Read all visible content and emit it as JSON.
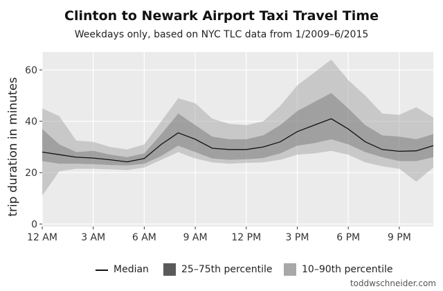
{
  "chart_data": {
    "type": "area",
    "title": "Clinton to Newark Airport Taxi Travel Time",
    "subtitle": "Weekdays only, based on NYC TLC data from 1/2009–6/2015",
    "ylabel": "trip duration in minutes",
    "xlabel": "",
    "ylim": [
      -1,
      67
    ],
    "xlim": [
      0,
      23
    ],
    "x_ticks": [
      {
        "value": 0,
        "label": "12 AM"
      },
      {
        "value": 3,
        "label": "3 AM"
      },
      {
        "value": 6,
        "label": "6 AM"
      },
      {
        "value": 9,
        "label": "9 AM"
      },
      {
        "value": 12,
        "label": "12 PM"
      },
      {
        "value": 15,
        "label": "3 PM"
      },
      {
        "value": 18,
        "label": "6 PM"
      },
      {
        "value": 21,
        "label": "9 PM"
      }
    ],
    "y_ticks": [
      0,
      20,
      40,
      60
    ],
    "grid": true,
    "x": [
      0,
      1,
      2,
      3,
      4,
      5,
      6,
      7,
      8,
      9,
      10,
      11,
      12,
      13,
      14,
      15,
      16,
      17,
      18,
      19,
      20,
      21,
      22,
      23
    ],
    "median": [
      28,
      27,
      26,
      25.7,
      25,
      24.2,
      25.5,
      31,
      35.5,
      33,
      29.5,
      29,
      29,
      30,
      32,
      36,
      38.5,
      41,
      37,
      32,
      29,
      28.3,
      28.5,
      30.5
    ],
    "p25": [
      24.5,
      23.5,
      23.5,
      23.3,
      23,
      22.8,
      23.5,
      26.5,
      30.5,
      28,
      25.5,
      25,
      25.2,
      25.7,
      27.5,
      30.5,
      31.5,
      33,
      31,
      28,
      26,
      24.5,
      24.5,
      26
    ],
    "p75": [
      37,
      31,
      28,
      28.5,
      27,
      26,
      27.5,
      35,
      43,
      38.5,
      34,
      33,
      33,
      34.5,
      38.5,
      44,
      47.5,
      51,
      45,
      38.5,
      34.5,
      34,
      33,
      35
    ],
    "p10": [
      11,
      20.5,
      21.5,
      21.5,
      21.3,
      21,
      22,
      25,
      28,
      25.5,
      24,
      23.5,
      23.8,
      24,
      25,
      27,
      27.5,
      28.5,
      27,
      24,
      22.5,
      21.5,
      16.5,
      22
    ],
    "p90": [
      45,
      42,
      32.5,
      32,
      30,
      29,
      31,
      40,
      49,
      47,
      41,
      39,
      38.5,
      40,
      46,
      54,
      59,
      64,
      56,
      50,
      43,
      42.5,
      45.5,
      41.5
    ],
    "series": [
      {
        "name": "Median",
        "color": "#111111"
      },
      {
        "name": "25–75th percentile",
        "color": "#555555"
      },
      {
        "name": "10–90th percentile",
        "color": "#9e9e9e"
      }
    ],
    "legend_position": "bottom"
  },
  "credit": "toddwschneider.com"
}
